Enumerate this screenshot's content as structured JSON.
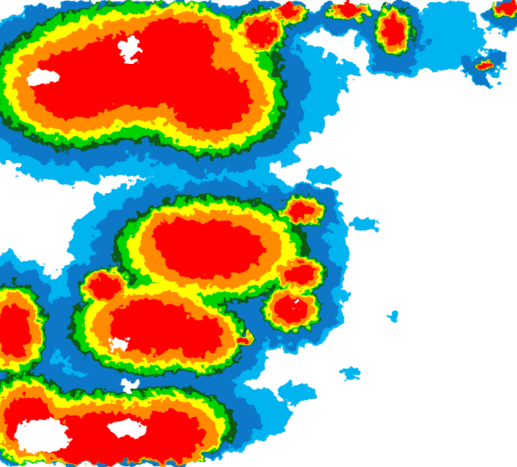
{
  "map": {
    "type": "enhanced infrared satellite imagery",
    "background_color": "#ffffff",
    "color_scale": [
      "#00b4f0",
      "#0a78c8",
      "#0a5a14",
      "#00d200",
      "#ffff00",
      "#ff8c00",
      "#ff0000",
      "#ffffff"
    ]
  }
}
